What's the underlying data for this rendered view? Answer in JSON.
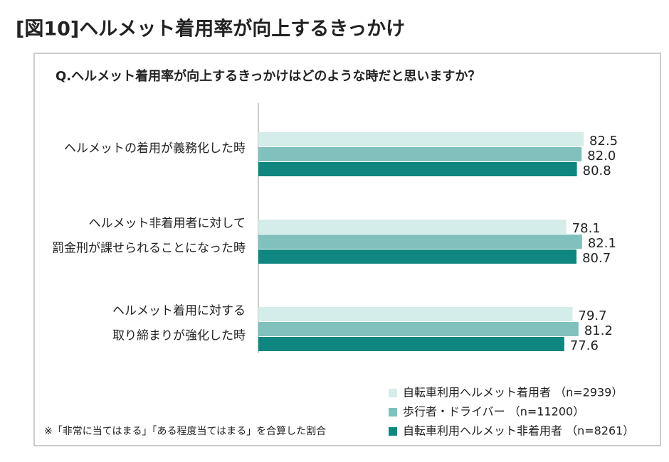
{
  "chart_data": {
    "type": "hbar",
    "title": "[図10]ヘルメット着用率が向上するきっかけ",
    "subtitle": "Q.ヘルメット着用率が向上するきっかけはどのような時だと思いますか？",
    "categories": [
      [
        "ヘルメットの着用が義務化した時"
      ],
      [
        "ヘルメット非着用者に対して",
        "罰金刑が課せられることになった時"
      ],
      [
        "ヘルメット着用に対する",
        "取り締まりが強化した時"
      ]
    ],
    "series": [
      {
        "name": "自転車利用ヘルメット着用者 （n=2939）",
        "color": "#d4ecea",
        "values": [
          82.5,
          78.1,
          79.7
        ],
        "value_labels": [
          "82.5",
          "78.1",
          "79.7"
        ]
      },
      {
        "name": "歩行者・ドライバー （n=11200）",
        "color": "#80c0bd",
        "values": [
          82.0,
          82.1,
          81.2
        ],
        "value_labels": [
          "82.0",
          "82.1",
          "81.2"
        ]
      },
      {
        "name": "自転車利用ヘルメット非着用者 （n=8261）",
        "color": "#0f8680",
        "values": [
          80.8,
          80.7,
          77.6
        ],
        "value_labels": [
          "80.8",
          "80.7",
          "77.6"
        ]
      }
    ],
    "xlim": [
      0,
      100
    ],
    "note": "※「非常に当てはまる」「ある程度当てはまる」を合算した割合"
  }
}
